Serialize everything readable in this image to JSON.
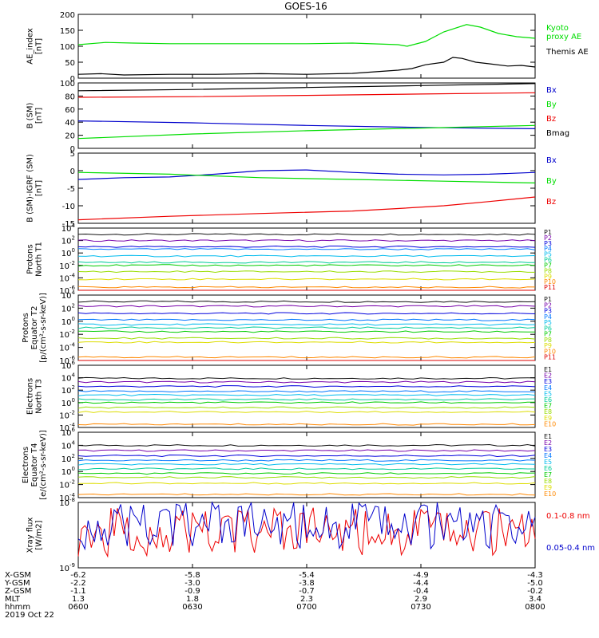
{
  "title": "GOES-16",
  "colors": {
    "black": "#000000",
    "red": "#ee0000",
    "green": "#00dd00",
    "blue": "#0000cc",
    "p": [
      "#111111",
      "#7700aa",
      "#0000dd",
      "#0077ff",
      "#00bbee",
      "#00cc99",
      "#00cc00",
      "#99dd00",
      "#dddd00",
      "#ff8800",
      "#dd0000"
    ]
  },
  "time_axis": {
    "start_label": "0600",
    "end_label": "0800",
    "ticks": [
      "0600",
      "0630",
      "0700",
      "0730",
      "0800"
    ]
  },
  "chart_data": [
    {
      "type": "line",
      "ylabel": "AE_index\n[nT]",
      "ylim": [
        0,
        200
      ],
      "yticks": [
        "0",
        "50",
        "100",
        "150",
        "200"
      ],
      "series": [
        {
          "name": "Kyoto\nproxy AE",
          "color": "#00dd00",
          "x": [
            0,
            0.06,
            0.12,
            0.2,
            0.3,
            0.4,
            0.5,
            0.6,
            0.7,
            0.72,
            0.76,
            0.8,
            0.85,
            0.88,
            0.92,
            0.96,
            1.0
          ],
          "values": [
            105,
            112,
            110,
            108,
            108,
            108,
            108,
            110,
            105,
            100,
            115,
            145,
            168,
            160,
            140,
            130,
            125
          ]
        },
        {
          "name": "Themis AE",
          "color": "#000000",
          "x": [
            0,
            0.05,
            0.1,
            0.2,
            0.3,
            0.4,
            0.5,
            0.6,
            0.7,
            0.73,
            0.76,
            0.8,
            0.82,
            0.84,
            0.87,
            0.9,
            0.94,
            0.97,
            1.0
          ],
          "values": [
            12,
            14,
            10,
            12,
            12,
            14,
            12,
            15,
            25,
            30,
            42,
            50,
            65,
            62,
            50,
            45,
            38,
            40,
            35
          ]
        }
      ]
    },
    {
      "type": "line",
      "ylabel": "B (SM)\n[nT]",
      "ylim": [
        0,
        100
      ],
      "yticks": [
        "0",
        "20",
        "40",
        "60",
        "80",
        "100"
      ],
      "series": [
        {
          "name": "Bx",
          "color": "#0000cc",
          "x": [
            0,
            0.25,
            0.5,
            0.75,
            1.0
          ],
          "values": [
            42,
            39,
            35,
            32,
            30
          ]
        },
        {
          "name": "By",
          "color": "#00dd00",
          "x": [
            0,
            0.25,
            0.5,
            0.75,
            1.0
          ],
          "values": [
            15,
            22,
            27,
            31,
            35
          ]
        },
        {
          "name": "Bz",
          "color": "#ee0000",
          "x": [
            0,
            0.25,
            0.5,
            0.75,
            1.0
          ],
          "values": [
            78,
            79,
            81,
            83,
            85
          ]
        },
        {
          "name": "Bmag",
          "color": "#000000",
          "x": [
            0,
            0.25,
            0.5,
            0.75,
            1.0
          ],
          "values": [
            88,
            90,
            93,
            96,
            99
          ]
        }
      ]
    },
    {
      "type": "line",
      "ylabel": "B (SM)-IGRF (SM)\n[nT]",
      "ylim": [
        -15,
        5
      ],
      "yticks": [
        "-15",
        "-10",
        "-5",
        "0",
        "5"
      ],
      "series": [
        {
          "name": "Bx",
          "color": "#0000cc",
          "x": [
            0,
            0.1,
            0.2,
            0.3,
            0.4,
            0.5,
            0.6,
            0.7,
            0.8,
            0.9,
            1.0
          ],
          "values": [
            -2.5,
            -2.0,
            -1.8,
            -1.0,
            0.0,
            0.2,
            -0.5,
            -1.0,
            -1.2,
            -1.0,
            -0.5
          ]
        },
        {
          "name": "By",
          "color": "#00dd00",
          "x": [
            0,
            0.2,
            0.4,
            0.6,
            0.8,
            1.0
          ],
          "values": [
            -0.5,
            -1.0,
            -2.0,
            -2.5,
            -3.0,
            -3.5
          ]
        },
        {
          "name": "Bz",
          "color": "#ee0000",
          "x": [
            0,
            0.2,
            0.4,
            0.6,
            0.7,
            0.8,
            0.9,
            1.0
          ],
          "values": [
            -14.0,
            -13.0,
            -12.2,
            -11.5,
            -10.8,
            -10.0,
            -8.8,
            -7.5
          ]
        }
      ]
    },
    {
      "type": "line",
      "ylabel": "Protons\nNorth T1",
      "ylog": true,
      "ylim_exp": [
        -6,
        4
      ],
      "series_levels": [
        3,
        2,
        1,
        0.6,
        -0.5,
        -1.5,
        -2.0,
        -3.0,
        -4.2,
        -5.5,
        -6.2
      ],
      "series_names": [
        "P1",
        "P2",
        "P3",
        "P4",
        "P5",
        "P6",
        "P7",
        "P8",
        "P9",
        "P10",
        "P11"
      ]
    },
    {
      "type": "line",
      "ylabel": "Protons\nEquator T2\n[p/(cm²-s-sr-keV)]",
      "ylog": true,
      "ylim_exp": [
        -6,
        4
      ],
      "series_levels": [
        3,
        2.3,
        1.2,
        0.2,
        -0.5,
        -1.0,
        -1.6,
        -2.6,
        -3.2,
        -5.5,
        -6.2
      ],
      "series_names": [
        "P1",
        "P2",
        "P3",
        "P4",
        "P5",
        "P6",
        "P7",
        "P8",
        "P9",
        "P10",
        "P11"
      ]
    },
    {
      "type": "line",
      "ylabel": "Electrons\nNorth T3",
      "ylog": true,
      "ylim_exp": [
        -4,
        6
      ],
      "series_levels": [
        3.9,
        3.3,
        2.6,
        1.8,
        1.2,
        0.5,
        0.0,
        -0.8,
        -1.5,
        -3.5
      ],
      "series_names": [
        "E1",
        "E2",
        "E3",
        "E4",
        "E5",
        "E6",
        "E7",
        "E8",
        "E9",
        "E10"
      ]
    },
    {
      "type": "line",
      "ylabel": "Electrons\nEquator T4\n[e/(cm²-s-sr-keV)]",
      "ylog": true,
      "ylim_exp": [
        -4,
        6
      ],
      "series_levels": [
        4.0,
        3.2,
        2.4,
        1.7,
        1.1,
        0.4,
        -0.3,
        -0.9,
        -1.8,
        -3.5
      ],
      "series_names": [
        "E1",
        "E2",
        "E3",
        "E4",
        "E5",
        "E6",
        "E7",
        "E8",
        "E9",
        "E10"
      ]
    },
    {
      "type": "line",
      "ylabel": "Xray flux\n[W/m2]",
      "ylog": true,
      "ylim_exp": [
        -9,
        -8
      ],
      "series": [
        {
          "name": "0.1-0.8 nm",
          "color": "#ee0000"
        },
        {
          "name": "0.05-0.4 nm",
          "color": "#0000cc"
        }
      ]
    }
  ],
  "orbit_table": {
    "labels": [
      "X-GSM",
      "Y-GSM",
      "Z-GSM",
      "MLT",
      "hhmm"
    ],
    "date": "2019 Oct 22",
    "columns": [
      [
        "-6.2",
        "-2.2",
        "-1.1",
        "1.3",
        "0600"
      ],
      [
        "-5.8",
        "-3.0",
        "-0.9",
        "1.8",
        "0630"
      ],
      [
        "-5.4",
        "-3.8",
        "-0.7",
        "2.3",
        "0700"
      ],
      [
        "-4.9",
        "-4.4",
        "-0.4",
        "2.9",
        "0730"
      ],
      [
        "-4.3",
        "-5.0",
        "-0.2",
        "3.4",
        "0800"
      ]
    ]
  }
}
